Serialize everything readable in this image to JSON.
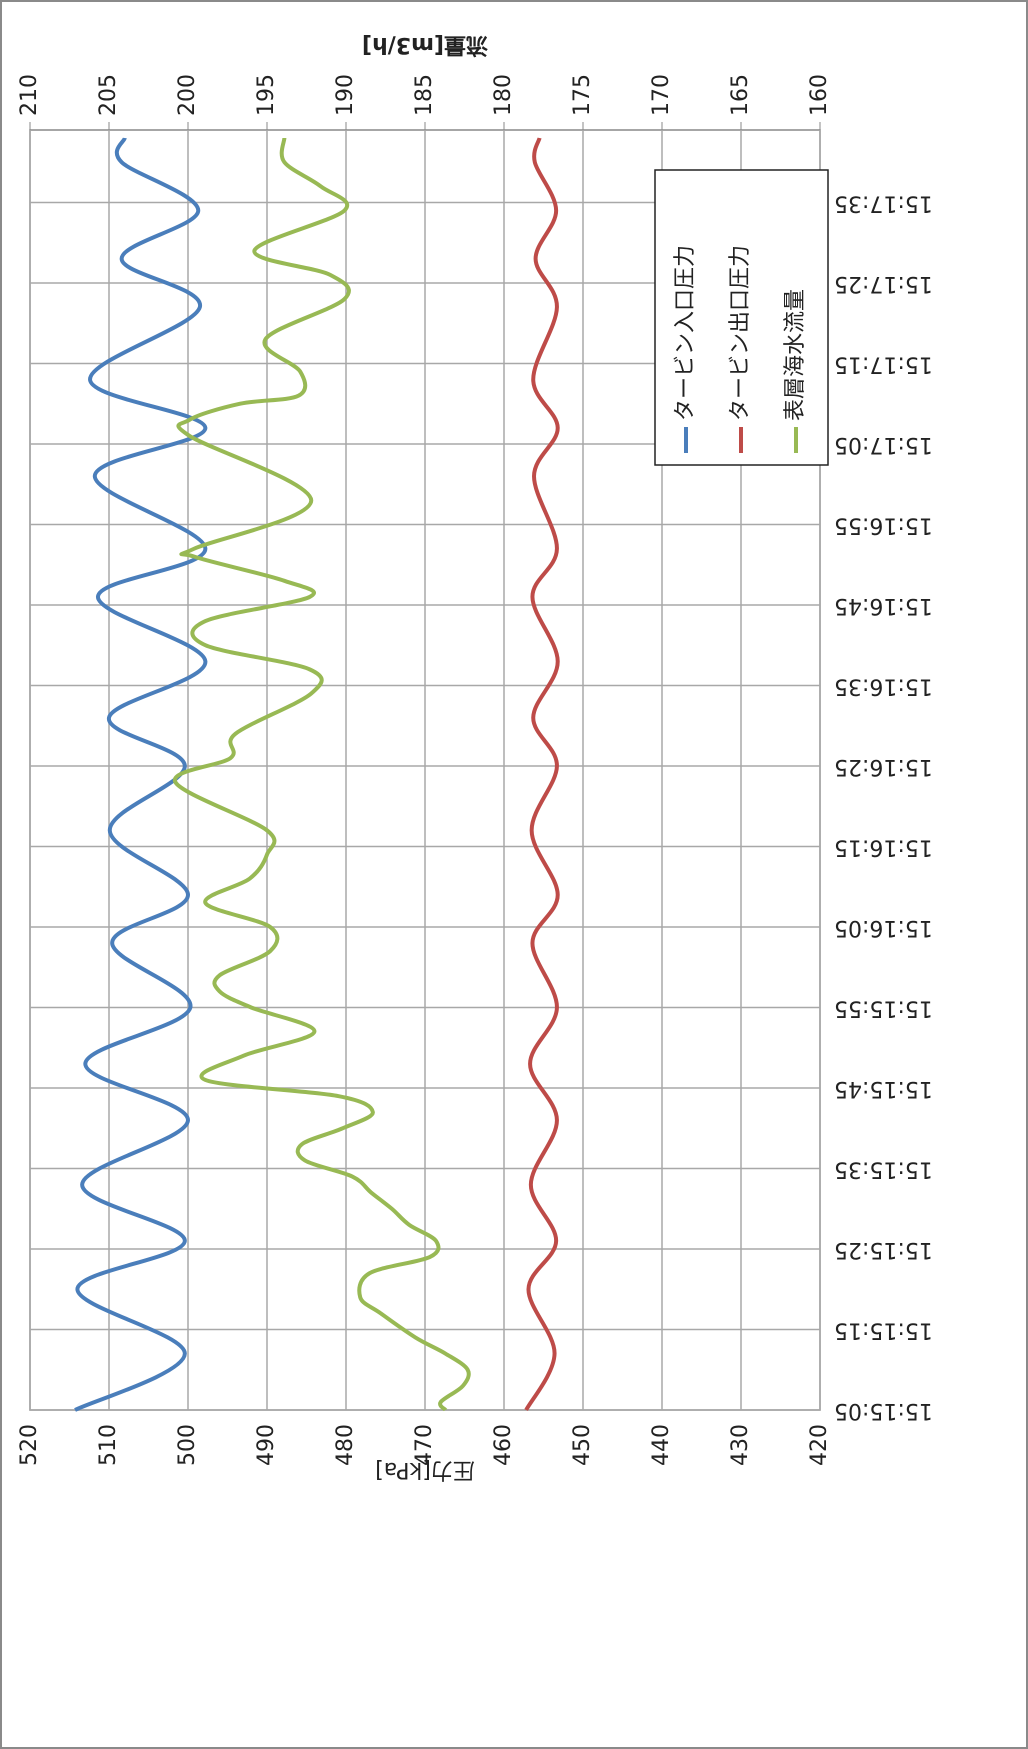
{
  "chart_data": {
    "type": "line",
    "y_label": "圧力[kPa]",
    "y2_label": "流量[m3/h]",
    "xlim": [
      54905,
      55064
    ],
    "xticks": [
      {
        "value": 54905,
        "label": "15:15:05"
      },
      {
        "value": 54915,
        "label": "15:15:15"
      },
      {
        "value": 54925,
        "label": "15:15:25"
      },
      {
        "value": 54935,
        "label": "15:15:35"
      },
      {
        "value": 54945,
        "label": "15:15:45"
      },
      {
        "value": 54955,
        "label": "15:15:55"
      },
      {
        "value": 54965,
        "label": "15:16:05"
      },
      {
        "value": 54975,
        "label": "15:16:15"
      },
      {
        "value": 54985,
        "label": "15:16:25"
      },
      {
        "value": 54995,
        "label": "15:16:35"
      },
      {
        "value": 55005,
        "label": "15:16:45"
      },
      {
        "value": 55015,
        "label": "15:16:55"
      },
      {
        "value": 55025,
        "label": "15:17:05"
      },
      {
        "value": 55035,
        "label": "15:17:15"
      },
      {
        "value": 55045,
        "label": "15:17:25"
      },
      {
        "value": 55055,
        "label": "15:17:35"
      }
    ],
    "ylim": [
      420,
      520
    ],
    "yticks": [
      420,
      430,
      440,
      450,
      460,
      470,
      480,
      490,
      500,
      510,
      520
    ],
    "y2lim": [
      160,
      210
    ],
    "y2ticks": [
      160,
      165,
      170,
      175,
      180,
      185,
      190,
      195,
      200,
      205,
      210
    ],
    "grid": true,
    "series": [
      {
        "name": "タービン入口圧力",
        "color": "#4a7ebb",
        "x": [
          54905,
          54912,
          54920,
          54926,
          54933,
          54941,
          54948,
          54955,
          54963,
          54969,
          54977,
          54985,
          54991,
          54998,
          55006,
          55012,
          55021,
          55027,
          55033,
          55042,
          55048,
          55054,
          55060,
          55063
        ],
        "values": [
          514.3,
          500.4,
          514,
          500.4,
          513.4,
          500,
          513,
          499.7,
          509.6,
          500,
          509.9,
          500.4,
          510,
          497.8,
          511.4,
          497.8,
          511.8,
          497.8,
          512.4,
          498.5,
          508.4,
          498.7,
          508.4,
          508
        ]
      },
      {
        "name": "タービン出口圧力",
        "color": "#be4b48",
        "x": [
          54905,
          54912,
          54920,
          54926,
          54933,
          54941,
          54948,
          54955,
          54963,
          54969,
          54977,
          54985,
          54991,
          54998,
          55006,
          55012,
          55021,
          55027,
          55033,
          55042,
          55048,
          55054,
          55060,
          55063
        ],
        "values": [
          457.2,
          453.6,
          456.9,
          453.4,
          456.6,
          453.3,
          456.7,
          453.3,
          456.4,
          453.2,
          456.5,
          453.3,
          456.3,
          453.2,
          456.4,
          453.3,
          456.2,
          453.2,
          456.3,
          453.3,
          456.0,
          453.4,
          456.1,
          455.5
        ]
      },
      {
        "name": "表層海水流量",
        "color": "#98b954",
        "axis": "y2",
        "x": [
          54905,
          54906,
          54908,
          54910,
          54912,
          54914,
          54917,
          54919,
          54922,
          54924,
          54926,
          54928,
          54930,
          54932,
          54934,
          54936,
          54938,
          54940,
          54942,
          54944,
          54946,
          54949,
          54952,
          54955,
          54957,
          54959,
          54962,
          54965,
          54968,
          54971,
          54974,
          54977,
          54983,
          54986,
          54989,
          54994,
          54997,
          55000,
          55003,
          55006,
          55008,
          55011,
          55012,
          55018,
          55026,
          55028,
          55030,
          55031,
          55034,
          55038,
          55043,
          55046,
          55049,
          55054,
          55057,
          55060,
          55063
        ],
        "values": [
          183.7,
          184.0,
          182.6,
          182.3,
          183.7,
          185.6,
          187.8,
          189.1,
          188.5,
          184.7,
          184.3,
          186.0,
          187.1,
          188.4,
          189.6,
          192.6,
          192.8,
          190.2,
          188.3,
          190.5,
          198.9,
          196.5,
          192.0,
          196.0,
          198.0,
          198.0,
          194.8,
          194.8,
          198.9,
          196.1,
          195.0,
          195.0,
          200.8,
          197.3,
          197.0,
          192.2,
          192.3,
          198.9,
          198.9,
          192.3,
          193.9,
          199.6,
          199.6,
          192.2,
          199.9,
          199.9,
          196.7,
          193.0,
          192.9,
          195.1,
          190.1,
          191.0,
          195.8,
          190.1,
          191.6,
          193.9,
          193.9
        ]
      }
    ]
  }
}
